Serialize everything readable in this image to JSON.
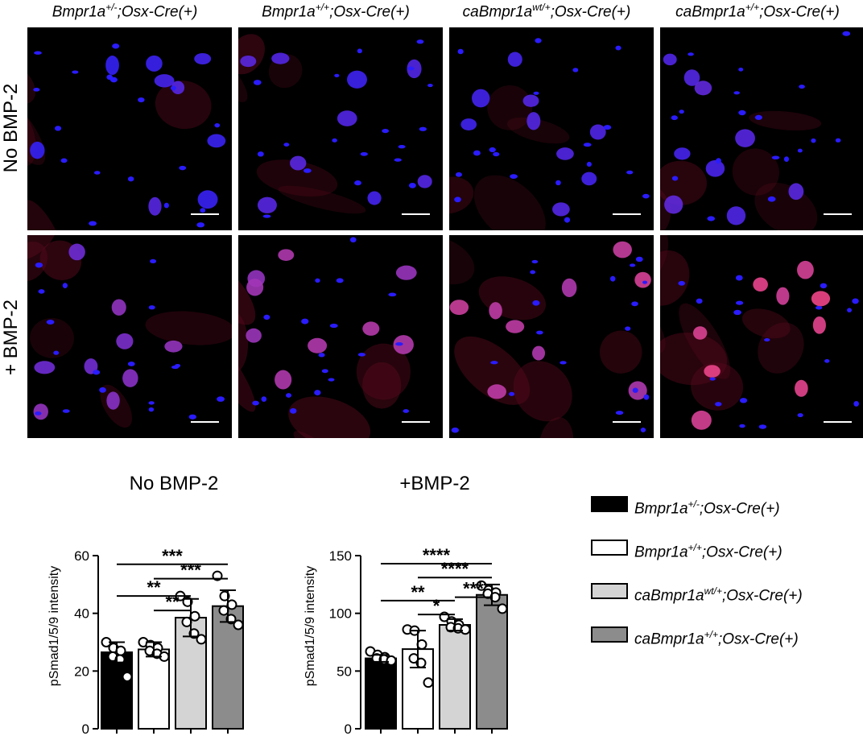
{
  "columns": [
    {
      "base": "Bmpr1a",
      "sup": "+/-",
      "rest": ";Osx-Cre(+)"
    },
    {
      "base": "Bmpr1a",
      "sup": "+/+",
      "rest": ";Osx-Cre(+)"
    },
    {
      "base": "caBmpr1a",
      "sup": "wt/+",
      "rest": ";Osx-Cre(+)"
    },
    {
      "base": "caBmpr1a",
      "sup": "+/+",
      "rest": ";Osx-Cre(+)"
    }
  ],
  "rows": [
    "No BMP-2",
    "+ BMP-2"
  ],
  "colors": {
    "bmpr1a_het": "#000000",
    "bmpr1a_wt": "#ffffff",
    "cabmpr1a_het": "#d4d4d4",
    "cabmpr1a_hom": "#8c8c8c",
    "nucleus": "#2a1cff",
    "cytoplasm": "#5a0a1e",
    "psmad": "#e0287a"
  },
  "chart_data": [
    {
      "type": "bar",
      "title": "No BMP-2",
      "ylabel": "pSmad1/5/9 intensity",
      "ylim": [
        0,
        60
      ],
      "yticks": [
        "0",
        "20",
        "40",
        "60"
      ],
      "categories": [
        "Bmpr1a+/-;Osx-Cre(+)",
        "Bmpr1a+/+;Osx-Cre(+)",
        "caBmpr1awt/+;Osx-Cre(+)",
        "caBmpr1a+/+;Osx-Cre(+)"
      ],
      "values": [
        26.5,
        27.5,
        38.5,
        42.5
      ],
      "errors": [
        3.5,
        2.5,
        6.5,
        5.5
      ],
      "points": [
        [
          30,
          28,
          27,
          25,
          24,
          18
        ],
        [
          30,
          29,
          28,
          27,
          26,
          25
        ],
        [
          46,
          44,
          39,
          37,
          33,
          31
        ],
        [
          53,
          46,
          43,
          41,
          38,
          36
        ]
      ],
      "significance": [
        {
          "from": 0,
          "to": 3,
          "label": "***",
          "y": 57
        },
        {
          "from": 1,
          "to": 3,
          "label": "***",
          "y": 52
        },
        {
          "from": 0,
          "to": 2,
          "label": "**",
          "y": 46
        },
        {
          "from": 1,
          "to": 2,
          "label": "**",
          "y": 41
        }
      ]
    },
    {
      "type": "bar",
      "title": "+BMP-2",
      "ylabel": "pSmad1/5/9 intensity",
      "ylim": [
        0,
        150
      ],
      "yticks": [
        "0",
        "50",
        "100",
        "150"
      ],
      "categories": [
        "Bmpr1a+/-;Osx-Cre(+)",
        "Bmpr1a+/+;Osx-Cre(+)",
        "caBmpr1awt/+;Osx-Cre(+)",
        "caBmpr1a+/+;Osx-Cre(+)"
      ],
      "values": [
        61,
        69,
        90,
        116
      ],
      "errors": [
        3,
        16,
        5,
        9
      ],
      "points": [
        [
          67,
          64,
          62,
          61,
          60,
          59
        ],
        [
          86,
          85,
          73,
          61,
          57,
          40
        ],
        [
          97,
          93,
          90,
          88,
          87,
          86
        ],
        [
          124,
          120,
          118,
          117,
          114,
          104
        ]
      ],
      "significance": [
        {
          "from": 0,
          "to": 3,
          "label": "****",
          "y": 143
        },
        {
          "from": 1,
          "to": 3,
          "label": "****",
          "y": 131
        },
        {
          "from": 0,
          "to": 2,
          "label": "**",
          "y": 111
        },
        {
          "from": 2,
          "to": 3,
          "label": "***",
          "y": 114
        },
        {
          "from": 1,
          "to": 2,
          "label": "*",
          "y": 99
        }
      ]
    }
  ]
}
